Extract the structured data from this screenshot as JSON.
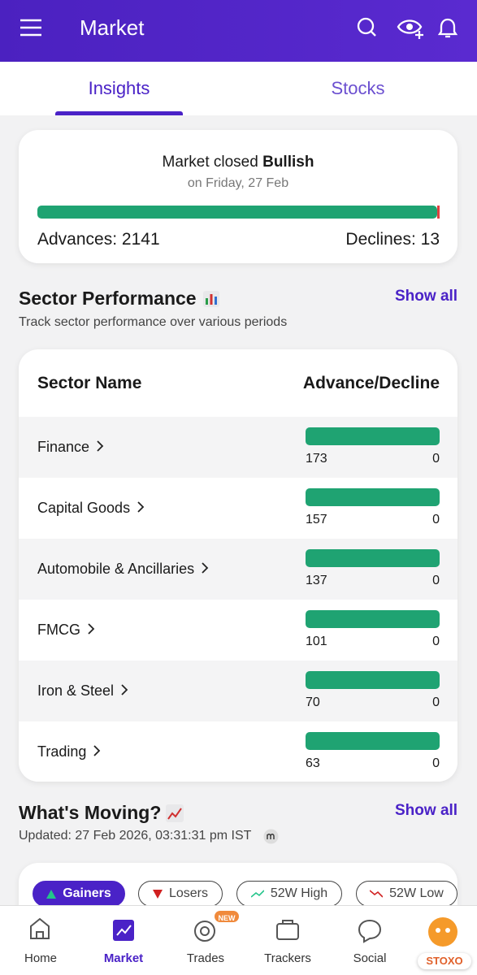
{
  "header": {
    "title": "Market"
  },
  "tabs": [
    "Insights",
    "Stocks"
  ],
  "market_summary": {
    "status_text": "Market closed",
    "status": "Bullish",
    "date": "on Friday, 27 Feb",
    "advances_label": "Advances:",
    "advances": 2141,
    "declines_label": "Declines:",
    "declines": 13
  },
  "sector_performance": {
    "title": "Sector Performance",
    "subtitle": "Track sector performance over various periods",
    "show_all": "Show all",
    "columns": [
      "Sector Name",
      "Advance/Decline"
    ],
    "rows": [
      {
        "name": "Finance",
        "advances": 173,
        "declines": 0
      },
      {
        "name": "Capital Goods",
        "advances": 157,
        "declines": 0
      },
      {
        "name": "Automobile & Ancillaries",
        "advances": 137,
        "declines": 0
      },
      {
        "name": "FMCG",
        "advances": 101,
        "declines": 0
      },
      {
        "name": "Iron & Steel",
        "advances": 70,
        "declines": 0
      },
      {
        "name": "Trading",
        "advances": 63,
        "declines": 0
      }
    ]
  },
  "whats_moving": {
    "title": "What's Moving?",
    "updated": "Updated: 27 Feb 2026, 03:31:31 pm IST",
    "show_all": "Show all",
    "filters": [
      "Gainers",
      "Losers",
      "52W High",
      "52W Low"
    ]
  },
  "bottom_nav": {
    "items": [
      "Home",
      "Market",
      "Trades",
      "Trackers",
      "Social"
    ],
    "badge": "NEW",
    "brand": "STOXO"
  }
}
